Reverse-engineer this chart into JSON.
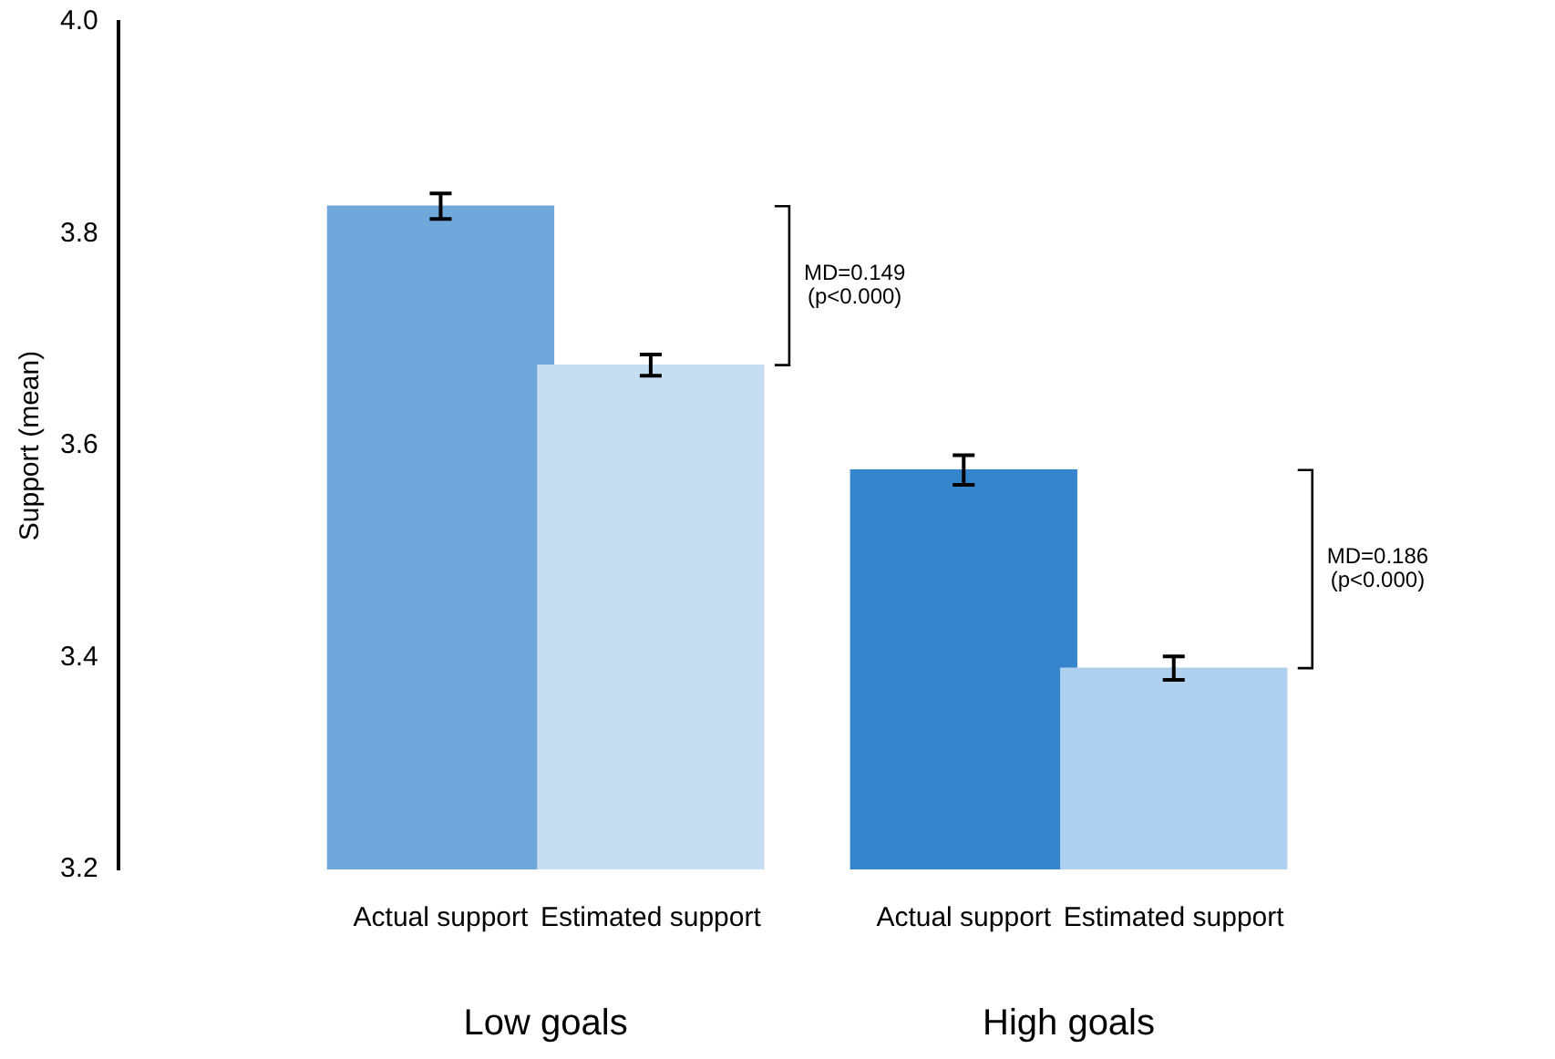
{
  "chart_data": {
    "type": "bar",
    "ylabel": "Support (mean)",
    "categories": [
      "Actual support",
      "Estimated support",
      "Actual support",
      "Estimated support"
    ],
    "values": [
      3.826,
      3.676,
      3.577,
      3.39
    ],
    "errors": [
      0.012,
      0.01,
      0.014,
      0.011
    ],
    "colors": [
      "#70a8dc",
      "#c6ddf2",
      "#3585cc",
      "#afd0ee"
    ],
    "ylim": [
      3.2,
      4.0
    ],
    "yticks": [
      {
        "value": 3.2,
        "label": "3.2"
      },
      {
        "value": 3.4,
        "label": "3.4"
      },
      {
        "value": 3.6,
        "label": "3.6"
      },
      {
        "value": 3.8,
        "label": "3.8"
      },
      {
        "value": 4.0,
        "label": "4.0"
      }
    ],
    "grid": false,
    "legend": false,
    "annotations": [
      "Low goals",
      "High goals",
      "MD=0.149\n(p<0.000)",
      "MD=0.186\n(p<0.000)"
    ]
  }
}
